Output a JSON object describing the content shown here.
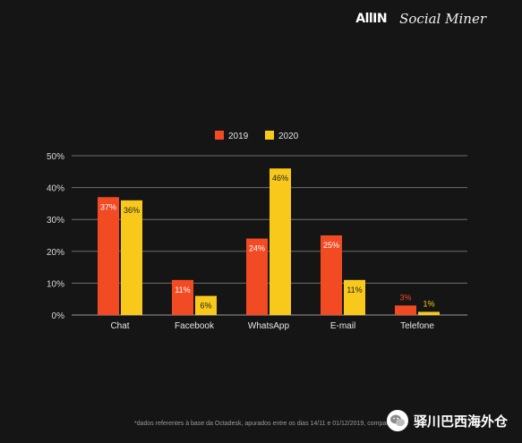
{
  "brand": {
    "left_logo": "AllIN",
    "right_logo": "Social Miner"
  },
  "chart_data": {
    "type": "bar",
    "categories": [
      "Chat",
      "Facebook",
      "WhatsApp",
      "E-mail",
      "Telefone"
    ],
    "series": [
      {
        "name": "2019",
        "color": "#f24a23",
        "values": [
          37,
          11,
          24,
          25,
          3
        ],
        "labels": [
          "37%",
          "11%",
          "24%",
          "25%",
          "3%"
        ]
      },
      {
        "name": "2020",
        "color": "#f8c91b",
        "values": [
          36,
          6,
          46,
          11,
          1
        ],
        "labels": [
          "36%",
          "6%",
          "46%",
          "11%",
          "1%"
        ]
      }
    ],
    "y_ticks": [
      0,
      10,
      20,
      30,
      40,
      50
    ],
    "y_tick_labels": [
      "0%",
      "10%",
      "20%",
      "30%",
      "40%",
      "50%"
    ],
    "ylim": [
      0,
      50
    ],
    "grid": true,
    "legend_position": "top-center",
    "title": "",
    "xlabel": "",
    "ylabel": ""
  },
  "footnote": "*dados referentes à base da Octadesk, apurados entre os dias 14/11 e 01/12/2019, compar...",
  "watermark": {
    "text": "驿川巴西海外仓",
    "icon": "wechat-icon"
  }
}
